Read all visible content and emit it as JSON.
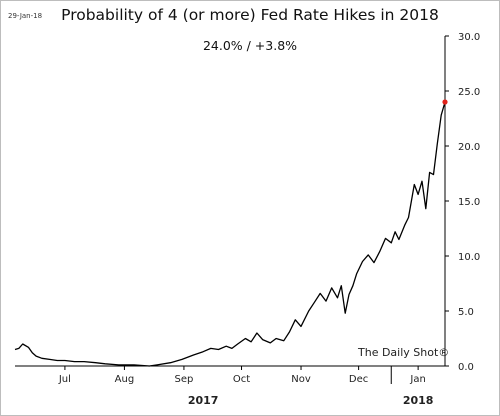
{
  "date_stamp": "29-Jan-18",
  "source": "The Daily Shot®",
  "colors": {
    "line": "#000000",
    "marker": "#e0231b",
    "axis": "#000000"
  },
  "chart_data": {
    "type": "line",
    "title": "Probability of 4 (or more) Fed Rate Hikes in 2018",
    "subtitle": "24.0%  /  +3.8%",
    "xlabel": "",
    "ylabel": "",
    "ylim": [
      0,
      30
    ],
    "y_ticks": [
      "0.0",
      "5.0",
      "10.0",
      "15.0",
      "20.0",
      "25.0",
      "30.0"
    ],
    "y_tick_values": [
      0,
      5,
      10,
      15,
      20,
      25,
      30
    ],
    "grid": false,
    "y_axis_side": "right",
    "x_range": [
      "2017-06-19",
      "2018-01-29"
    ],
    "month_ticks": [
      {
        "label": "Jul",
        "date": "2017-07-15"
      },
      {
        "label": "Aug",
        "date": "2017-08-15"
      },
      {
        "label": "Sep",
        "date": "2017-09-15"
      },
      {
        "label": "Oct",
        "date": "2017-10-15"
      },
      {
        "label": "Nov",
        "date": "2017-11-15"
      },
      {
        "label": "Dec",
        "date": "2017-12-15"
      },
      {
        "label": "Jan",
        "date": "2018-01-15"
      }
    ],
    "year_labels": [
      {
        "label": "2017",
        "date": "2017-09-25"
      },
      {
        "label": "2018",
        "date": "2018-01-15"
      }
    ],
    "series": [
      {
        "values": [
          {
            "x": "2017-06-19",
            "y": 1.5
          },
          {
            "x": "2017-06-21",
            "y": 1.6
          },
          {
            "x": "2017-06-23",
            "y": 2.0
          },
          {
            "x": "2017-06-26",
            "y": 1.7
          },
          {
            "x": "2017-06-28",
            "y": 1.2
          },
          {
            "x": "2017-06-30",
            "y": 0.9
          },
          {
            "x": "2017-07-03",
            "y": 0.7
          },
          {
            "x": "2017-07-07",
            "y": 0.6
          },
          {
            "x": "2017-07-11",
            "y": 0.5
          },
          {
            "x": "2017-07-15",
            "y": 0.5
          },
          {
            "x": "2017-07-20",
            "y": 0.4
          },
          {
            "x": "2017-07-25",
            "y": 0.4
          },
          {
            "x": "2017-07-31",
            "y": 0.3
          },
          {
            "x": "2017-08-05",
            "y": 0.2
          },
          {
            "x": "2017-08-12",
            "y": 0.1
          },
          {
            "x": "2017-08-20",
            "y": 0.1
          },
          {
            "x": "2017-08-28",
            "y": 0.0
          },
          {
            "x": "2017-09-01",
            "y": 0.1
          },
          {
            "x": "2017-09-08",
            "y": 0.3
          },
          {
            "x": "2017-09-14",
            "y": 0.6
          },
          {
            "x": "2017-09-20",
            "y": 1.0
          },
          {
            "x": "2017-09-25",
            "y": 1.3
          },
          {
            "x": "2017-09-29",
            "y": 1.6
          },
          {
            "x": "2017-10-03",
            "y": 1.5
          },
          {
            "x": "2017-10-07",
            "y": 1.8
          },
          {
            "x": "2017-10-10",
            "y": 1.6
          },
          {
            "x": "2017-10-13",
            "y": 2.0
          },
          {
            "x": "2017-10-17",
            "y": 2.5
          },
          {
            "x": "2017-10-20",
            "y": 2.2
          },
          {
            "x": "2017-10-23",
            "y": 3.0
          },
          {
            "x": "2017-10-26",
            "y": 2.4
          },
          {
            "x": "2017-10-30",
            "y": 2.1
          },
          {
            "x": "2017-11-02",
            "y": 2.5
          },
          {
            "x": "2017-11-06",
            "y": 2.3
          },
          {
            "x": "2017-11-09",
            "y": 3.1
          },
          {
            "x": "2017-11-12",
            "y": 4.2
          },
          {
            "x": "2017-11-15",
            "y": 3.6
          },
          {
            "x": "2017-11-19",
            "y": 5.0
          },
          {
            "x": "2017-11-22",
            "y": 5.8
          },
          {
            "x": "2017-11-25",
            "y": 6.6
          },
          {
            "x": "2017-11-28",
            "y": 5.9
          },
          {
            "x": "2017-12-01",
            "y": 7.1
          },
          {
            "x": "2017-12-04",
            "y": 6.2
          },
          {
            "x": "2017-12-06",
            "y": 7.3
          },
          {
            "x": "2017-12-08",
            "y": 4.8
          },
          {
            "x": "2017-12-10",
            "y": 6.5
          },
          {
            "x": "2017-12-12",
            "y": 7.3
          },
          {
            "x": "2017-12-14",
            "y": 8.4
          },
          {
            "x": "2017-12-17",
            "y": 9.5
          },
          {
            "x": "2017-12-20",
            "y": 10.1
          },
          {
            "x": "2017-12-23",
            "y": 9.4
          },
          {
            "x": "2017-12-26",
            "y": 10.4
          },
          {
            "x": "2017-12-29",
            "y": 11.6
          },
          {
            "x": "2018-01-01",
            "y": 11.2
          },
          {
            "x": "2018-01-03",
            "y": 12.2
          },
          {
            "x": "2018-01-05",
            "y": 11.5
          },
          {
            "x": "2018-01-08",
            "y": 12.8
          },
          {
            "x": "2018-01-10",
            "y": 13.5
          },
          {
            "x": "2018-01-13",
            "y": 16.5
          },
          {
            "x": "2018-01-15",
            "y": 15.6
          },
          {
            "x": "2018-01-17",
            "y": 16.8
          },
          {
            "x": "2018-01-19",
            "y": 14.3
          },
          {
            "x": "2018-01-21",
            "y": 17.6
          },
          {
            "x": "2018-01-23",
            "y": 17.4
          },
          {
            "x": "2018-01-25",
            "y": 20.2
          },
          {
            "x": "2018-01-27",
            "y": 22.8
          },
          {
            "x": "2018-01-29",
            "y": 24.0
          }
        ]
      }
    ],
    "last_point": {
      "x": "2018-01-29",
      "y": 24.0
    }
  }
}
